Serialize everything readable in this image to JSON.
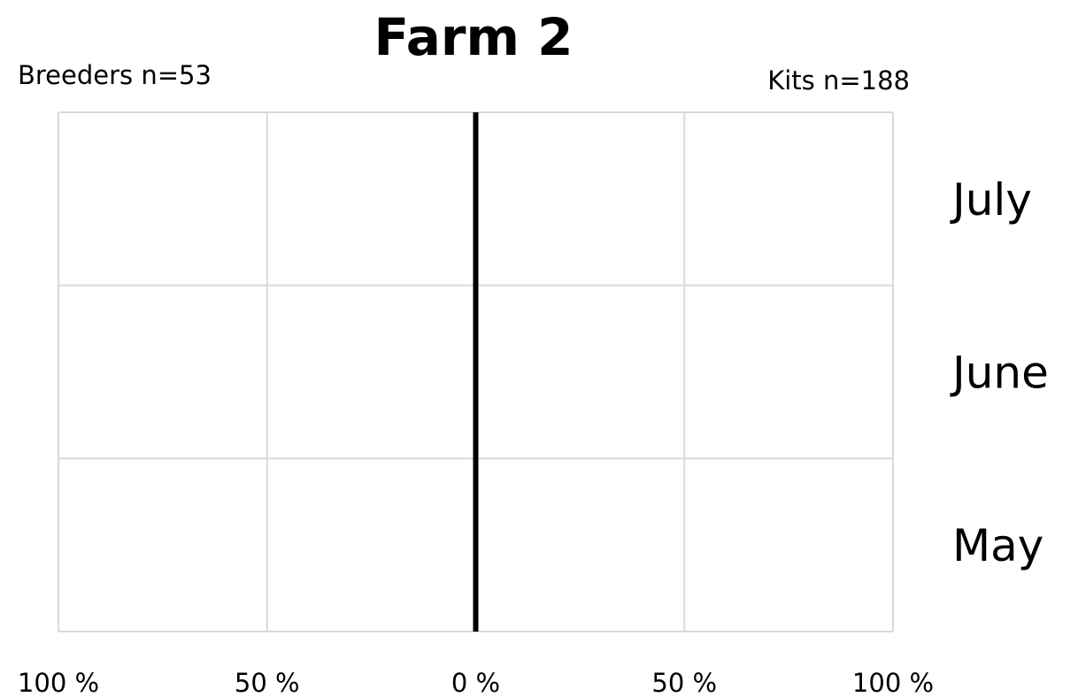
{
  "chart_data": {
    "type": "bar",
    "orientation": "horizontal-diverging",
    "title": "Farm 2",
    "left_group_label": "Breeders n=53",
    "right_group_label": "Kits n=188",
    "categories": [
      "July",
      "June",
      "May"
    ],
    "x_tick_labels": [
      "100 %",
      "50 %",
      "0 %",
      "50 %",
      "100 %"
    ],
    "x_ticks": [
      -100,
      -50,
      0,
      50,
      100
    ],
    "xlim": [
      -100,
      100
    ],
    "grid": true,
    "series": [],
    "colors": {
      "gridline": "#d9d9d9",
      "center_line": "#000000",
      "text": "#000000"
    }
  }
}
